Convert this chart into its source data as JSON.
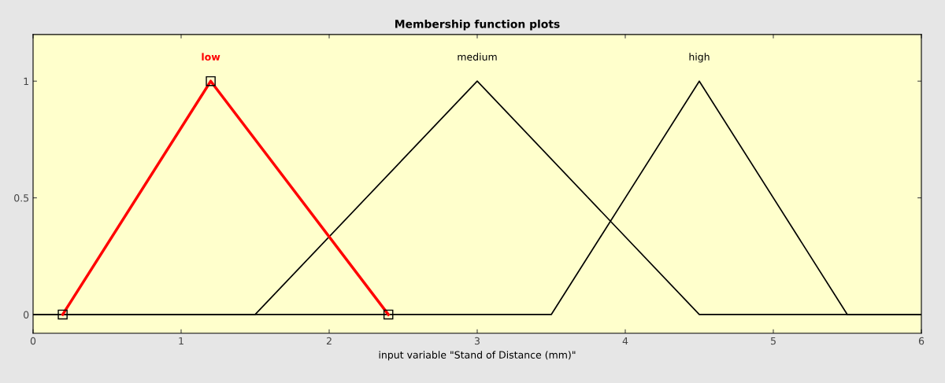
{
  "chart_data": {
    "type": "line",
    "title": "Membership function plots",
    "xlabel": "input variable \"Stand of Distance (mm)\"",
    "series": [
      {
        "name": "low",
        "color": "#ff0000",
        "x": [
          0.2,
          1.2,
          2.4
        ],
        "values": [
          0,
          1,
          0
        ],
        "marker": "square"
      },
      {
        "name": "medium",
        "color": "#000000",
        "x": [
          0,
          1.5,
          3,
          4.5,
          6
        ],
        "values": [
          0,
          0,
          1,
          0,
          0
        ]
      },
      {
        "name": "high",
        "color": "#000000",
        "x": [
          0,
          3.5,
          4.5,
          5.5,
          6
        ],
        "values": [
          0,
          0,
          1,
          0,
          0
        ]
      }
    ],
    "xlim": [
      0,
      6
    ],
    "xticks": [
      0,
      1,
      2,
      3,
      4,
      5,
      6
    ],
    "ylim": [
      -0.08,
      1.2
    ],
    "yticks": [
      0,
      0.5,
      1
    ],
    "grid": false,
    "legend": false,
    "line_style": "solid"
  }
}
